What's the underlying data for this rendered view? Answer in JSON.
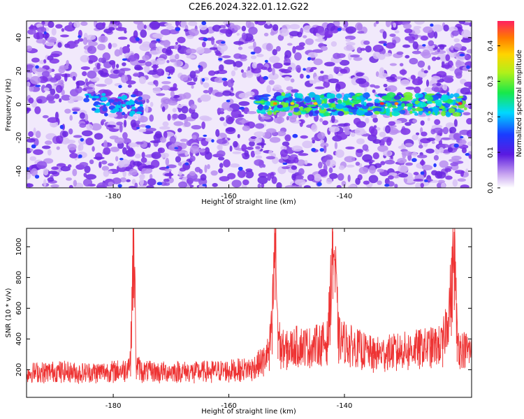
{
  "title": "C2E6.2024.322.01.12.G22",
  "chart_data": [
    {
      "type": "heatmap",
      "xlabel": "Height of straight line (km)",
      "ylabel": "Frequency (Hz)",
      "xlim": [
        -195,
        -118
      ],
      "ylim": [
        -50,
        50
      ],
      "x_ticks": [
        -180,
        -160,
        -140
      ],
      "y_ticks": [
        -40,
        -20,
        0,
        20,
        40
      ],
      "x_tick_labels": [
        "-180",
        "-160",
        "-140"
      ],
      "y_tick_labels": [
        "-40",
        "-20",
        "0",
        "20",
        "40"
      ],
      "colorbar": {
        "label": "Normalized spectral amplitude",
        "range": [
          0.0,
          0.47
        ],
        "ticks": [
          0.0,
          0.1,
          0.2,
          0.3,
          0.4
        ],
        "tick_labels": [
          "0.0",
          "0.1",
          "0.2",
          "0.3",
          "0.4"
        ]
      },
      "features": [
        {
          "description": "strong signal band near 0 Hz",
          "x_range": [
            -155,
            -119
          ],
          "frequency": 0,
          "max_amplitude": 0.45
        },
        {
          "description": "weak noise background",
          "x_range": [
            -195,
            -118
          ],
          "amplitude": 0.08
        }
      ]
    },
    {
      "type": "line",
      "xlabel": "Height of straight line (km)",
      "ylabel": "SNR (10 * v/v)",
      "xlim": [
        -195,
        -118
      ],
      "ylim": [
        20,
        1120
      ],
      "x_ticks": [
        -180,
        -160,
        -140
      ],
      "y_ticks": [
        200,
        400,
        600,
        800,
        1000
      ],
      "x_tick_labels": [
        "-180",
        "-160",
        "-140"
      ],
      "y_tick_labels": [
        "200",
        "400",
        "600",
        "800",
        "1000"
      ],
      "series": [
        {
          "color": "#ee3333",
          "x": [
            -195,
            -192,
            -189,
            -186,
            -183,
            -180,
            -178,
            -177,
            -176.5,
            -176,
            -175,
            -172,
            -169,
            -166,
            -163,
            -160,
            -158,
            -156,
            -154,
            -153,
            -152.5,
            -152,
            -151.5,
            -151,
            -150,
            -148,
            -146,
            -144,
            -143,
            -142.5,
            -142,
            -141,
            -139,
            -137,
            -135,
            -133,
            -131,
            -129,
            -127,
            -125,
            -123,
            -121.5,
            -121,
            -120.5,
            -120,
            -118
          ],
          "values": [
            180,
            185,
            190,
            180,
            185,
            190,
            200,
            260,
            1110,
            230,
            190,
            185,
            190,
            185,
            190,
            195,
            200,
            210,
            260,
            320,
            500,
            1090,
            450,
            340,
            330,
            360,
            350,
            370,
            380,
            600,
            1100,
            400,
            360,
            330,
            300,
            310,
            320,
            330,
            340,
            350,
            360,
            700,
            980,
            420,
            340,
            320
          ]
        }
      ]
    }
  ]
}
